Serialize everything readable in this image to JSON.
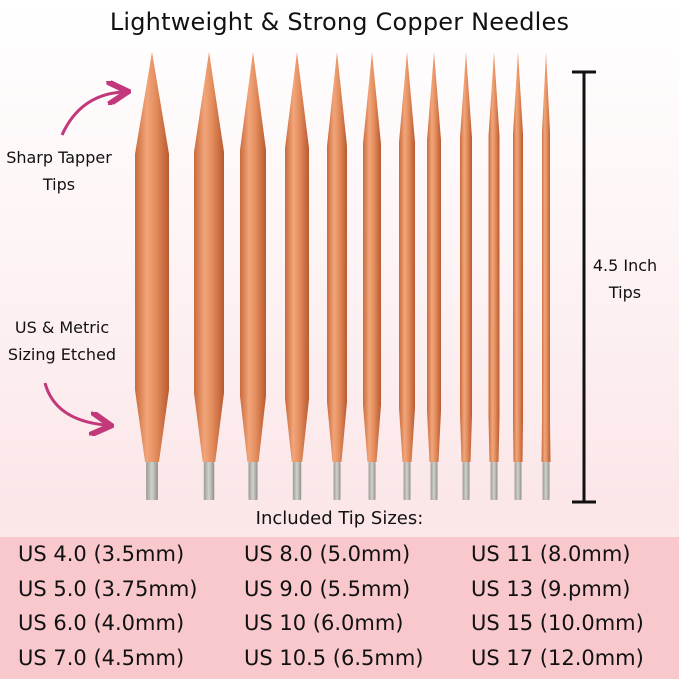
{
  "title": "Lightweight & Strong Copper Needles",
  "callouts": {
    "tips_line1": "Sharp Tapper",
    "tips_line2": "Tips",
    "sizing_line1": "US & Metric",
    "sizing_line2": "Sizing Etched",
    "length_line1": "4.5 Inch",
    "length_line2": "Tips"
  },
  "sizes_heading": "Included Tip Sizes:",
  "sizes": [
    [
      "US 4.0 (3.5mm)",
      "US 8.0 (5.0mm)",
      "US 11 (8.0mm)"
    ],
    [
      "US 5.0 (3.75mm)",
      "US 9.0 (5.5mm)",
      "US 13 (9.pmm)"
    ],
    [
      "US 6.0 (4.0mm)",
      "US 10 (6.0mm)",
      "US 15 (10.0mm)"
    ],
    [
      "US 7.0 (4.5mm)",
      "US 10.5 (6.5mm)",
      "US 17 (12.0mm)"
    ]
  ],
  "colors": {
    "copper": "#e89a6a",
    "ferrule": "#b9b9b4",
    "arrow": "#c2387a",
    "band": "#f8c8cd"
  }
}
